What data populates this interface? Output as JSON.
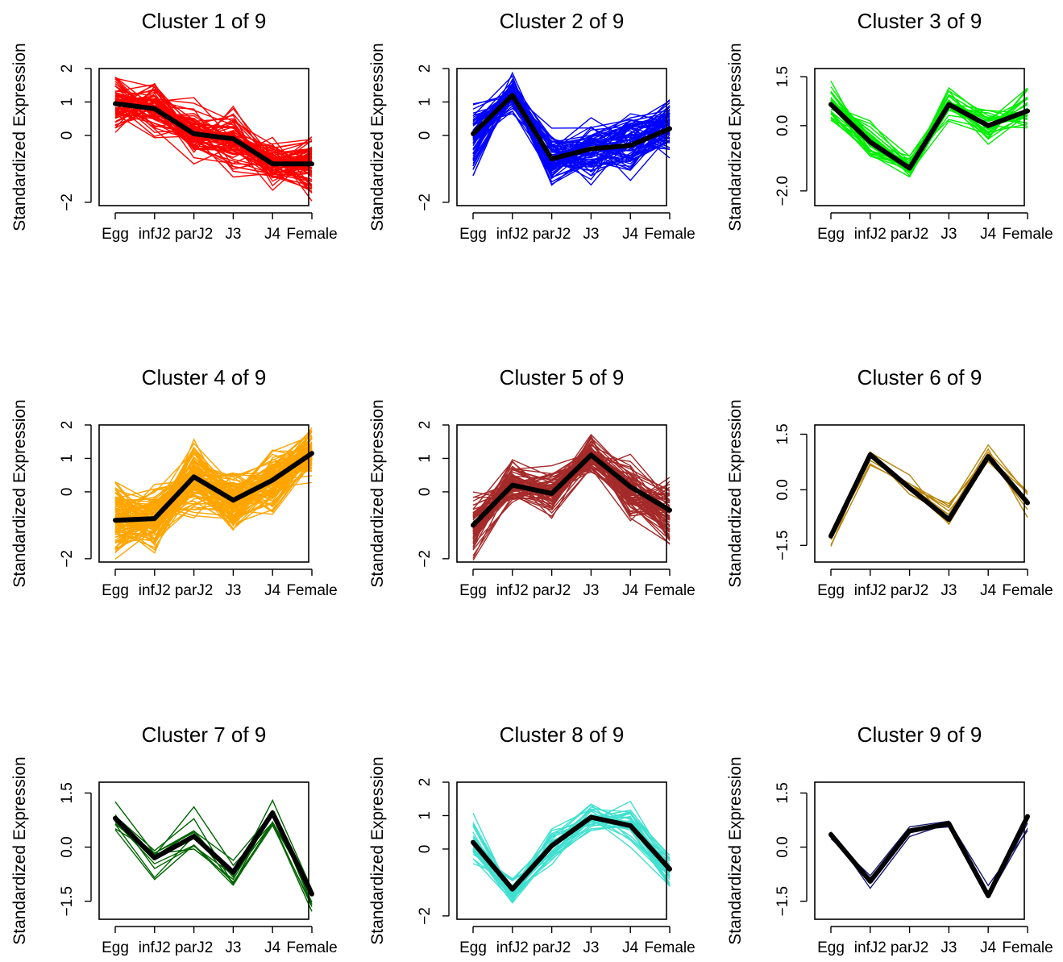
{
  "chart_data": [
    {
      "type": "line",
      "title": "Cluster 1 of 9",
      "ylabel": "Standardized Expression",
      "categories": [
        "Egg",
        "infJ2",
        "parJ2",
        "J3",
        "J4",
        "Female"
      ],
      "yticks": [
        "−2",
        "0",
        "1",
        "2"
      ],
      "ytick_values": [
        -2,
        0,
        1,
        2
      ],
      "ylim": [
        -2.1,
        2.0
      ],
      "member_color": "#ff0000",
      "member_count": 70,
      "member_spread": [
        0.65,
        0.6,
        0.7,
        0.7,
        0.6,
        0.75
      ],
      "centroid": [
        0.95,
        0.8,
        0.05,
        -0.1,
        -0.85,
        -0.85
      ]
    },
    {
      "type": "line",
      "title": "Cluster 2 of 9",
      "ylabel": "Standardized Expression",
      "categories": [
        "Egg",
        "infJ2",
        "parJ2",
        "J3",
        "J4",
        "Female"
      ],
      "yticks": [
        "−2",
        "0",
        "1",
        "2"
      ],
      "ytick_values": [
        -2,
        0,
        1,
        2
      ],
      "ylim": [
        -2.1,
        2.0
      ],
      "member_color": "#0000ff",
      "member_count": 70,
      "member_spread": [
        0.9,
        0.45,
        0.65,
        0.75,
        0.7,
        0.7
      ],
      "centroid": [
        0.05,
        1.2,
        -0.7,
        -0.4,
        -0.3,
        0.2
      ]
    },
    {
      "type": "line",
      "title": "Cluster 3 of 9",
      "ylabel": "Standardized Expression",
      "categories": [
        "Egg",
        "infJ2",
        "parJ2",
        "J3",
        "J4",
        "Female"
      ],
      "yticks": [
        "−2.0",
        "0.0",
        "1.5"
      ],
      "ytick_values": [
        -2.0,
        0.0,
        1.5
      ],
      "ylim": [
        -2.45,
        1.75
      ],
      "member_color": "#00ee00",
      "member_count": 30,
      "member_spread": [
        0.5,
        0.5,
        0.3,
        0.5,
        0.5,
        0.55
      ],
      "centroid": [
        0.65,
        -0.5,
        -1.3,
        0.65,
        0.0,
        0.45
      ]
    },
    {
      "type": "line",
      "title": "Cluster 4 of 9",
      "ylabel": "Standardized Expression",
      "categories": [
        "Egg",
        "infJ2",
        "parJ2",
        "J3",
        "J4",
        "Female"
      ],
      "yticks": [
        "−2",
        "0",
        "1",
        "2"
      ],
      "ytick_values": [
        -2,
        0,
        1,
        2
      ],
      "ylim": [
        -2.1,
        2.0
      ],
      "member_color": "#ffa500",
      "member_count": 110,
      "member_spread": [
        0.8,
        0.7,
        0.85,
        0.8,
        0.8,
        0.6
      ],
      "centroid": [
        -0.85,
        -0.8,
        0.45,
        -0.25,
        0.35,
        1.15
      ]
    },
    {
      "type": "line",
      "title": "Cluster 5 of 9",
      "ylabel": "Standardized Expression",
      "categories": [
        "Egg",
        "infJ2",
        "parJ2",
        "J3",
        "J4",
        "Female"
      ],
      "yticks": [
        "−2",
        "0",
        "1",
        "2"
      ],
      "ytick_values": [
        -2,
        0,
        1,
        2
      ],
      "ylim": [
        -2.1,
        2.0
      ],
      "member_color": "#a52a2a",
      "member_count": 70,
      "member_spread": [
        0.8,
        0.55,
        0.6,
        0.45,
        0.7,
        0.8
      ],
      "centroid": [
        -1.0,
        0.2,
        -0.05,
        1.1,
        0.15,
        -0.55
      ]
    },
    {
      "type": "line",
      "title": "Cluster 6 of 9",
      "ylabel": "Standardized Expression",
      "categories": [
        "Egg",
        "infJ2",
        "parJ2",
        "J3",
        "J4",
        "Female"
      ],
      "yticks": [
        "−1.5",
        "0.0",
        "1.5"
      ],
      "ytick_values": [
        -1.5,
        0.0,
        1.5
      ],
      "ylim": [
        -1.95,
        1.75
      ],
      "member_color": "#b8860b",
      "member_count": 8,
      "member_spread": [
        0.35,
        0.4,
        0.4,
        0.35,
        0.3,
        0.4
      ],
      "centroid": [
        -1.25,
        0.95,
        0.05,
        -0.8,
        0.9,
        -0.35
      ]
    },
    {
      "type": "line",
      "title": "Cluster 7 of 9",
      "ylabel": "Standardized Expression",
      "categories": [
        "Egg",
        "infJ2",
        "parJ2",
        "J3",
        "J4",
        "Female"
      ],
      "yticks": [
        "−1.5",
        "0.0",
        "1.5"
      ],
      "ytick_values": [
        -1.5,
        0.0,
        1.5
      ],
      "ylim": [
        -2.0,
        1.8
      ],
      "member_color": "#006400",
      "member_count": 10,
      "member_spread": [
        0.35,
        0.55,
        0.6,
        0.35,
        0.35,
        0.35
      ],
      "centroid": [
        0.8,
        -0.3,
        0.3,
        -0.7,
        0.95,
        -1.3
      ]
    },
    {
      "type": "line",
      "title": "Cluster 8 of 9",
      "ylabel": "Standardized Expression",
      "categories": [
        "Egg",
        "infJ2",
        "parJ2",
        "J3",
        "J4",
        "Female"
      ],
      "yticks": [
        "−2",
        "0",
        "1",
        "2"
      ],
      "ytick_values": [
        -2,
        0,
        1,
        2
      ],
      "ylim": [
        -2.1,
        2.0
      ],
      "member_color": "#40e0d0",
      "member_count": 30,
      "member_spread": [
        0.6,
        0.35,
        0.5,
        0.4,
        0.5,
        0.55
      ],
      "centroid": [
        0.2,
        -1.2,
        0.1,
        0.95,
        0.7,
        -0.6
      ]
    },
    {
      "type": "line",
      "title": "Cluster 9 of 9",
      "ylabel": "Standardized Expression",
      "categories": [
        "Egg",
        "infJ2",
        "parJ2",
        "J3",
        "J4",
        "Female"
      ],
      "yticks": [
        "−1.5",
        "0.0",
        "1.5"
      ],
      "ytick_values": [
        -1.5,
        0.0,
        1.5
      ],
      "ylim": [
        -2.0,
        1.8
      ],
      "member_color": "#191970",
      "member_count": 3,
      "member_spread": [
        0.08,
        0.35,
        0.2,
        0.12,
        0.35,
        0.45
      ],
      "centroid": [
        0.35,
        -0.95,
        0.45,
        0.65,
        -1.35,
        0.85
      ]
    }
  ]
}
